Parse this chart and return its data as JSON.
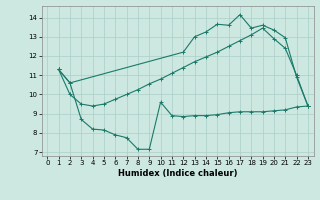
{
  "xlabel": "Humidex (Indice chaleur)",
  "bg_color": "#cce8e0",
  "line_color": "#1a7a6a",
  "grid_color": "#aacfc8",
  "xlim": [
    -0.5,
    23.5
  ],
  "ylim": [
    6.8,
    14.6
  ],
  "yticks": [
    7,
    8,
    9,
    10,
    11,
    12,
    13,
    14
  ],
  "xticks": [
    0,
    1,
    2,
    3,
    4,
    5,
    6,
    7,
    8,
    9,
    10,
    11,
    12,
    13,
    14,
    15,
    16,
    17,
    18,
    19,
    20,
    21,
    22,
    23
  ],
  "line1_x": [
    1,
    2,
    3,
    4,
    5,
    6,
    7,
    8,
    9,
    10,
    11,
    12,
    13,
    14,
    15,
    16,
    17,
    18,
    19,
    20,
    21,
    22,
    23
  ],
  "line1_y": [
    11.3,
    10.6,
    8.7,
    8.2,
    8.15,
    7.9,
    7.75,
    7.15,
    7.15,
    9.6,
    8.9,
    8.85,
    8.9,
    8.9,
    8.95,
    9.05,
    9.1,
    9.1,
    9.1,
    9.15,
    9.2,
    9.35,
    9.4
  ],
  "line2_x": [
    1,
    2,
    3,
    4,
    5,
    6,
    7,
    8,
    9,
    10,
    11,
    12,
    13,
    14,
    15,
    16,
    17,
    18,
    19,
    20,
    21,
    22,
    23
  ],
  "line2_y": [
    11.3,
    10.0,
    9.5,
    9.4,
    9.5,
    9.75,
    10.0,
    10.25,
    10.55,
    10.8,
    11.1,
    11.4,
    11.7,
    11.95,
    12.2,
    12.5,
    12.8,
    13.1,
    13.45,
    12.9,
    12.4,
    11.0,
    9.4
  ],
  "line3_x": [
    1,
    2,
    12,
    13,
    14,
    15,
    16,
    17,
    18,
    19,
    20,
    21,
    22,
    23
  ],
  "line3_y": [
    11.3,
    10.6,
    12.2,
    13.0,
    13.25,
    13.65,
    13.6,
    14.15,
    13.45,
    13.6,
    13.35,
    12.95,
    10.9,
    9.4
  ]
}
